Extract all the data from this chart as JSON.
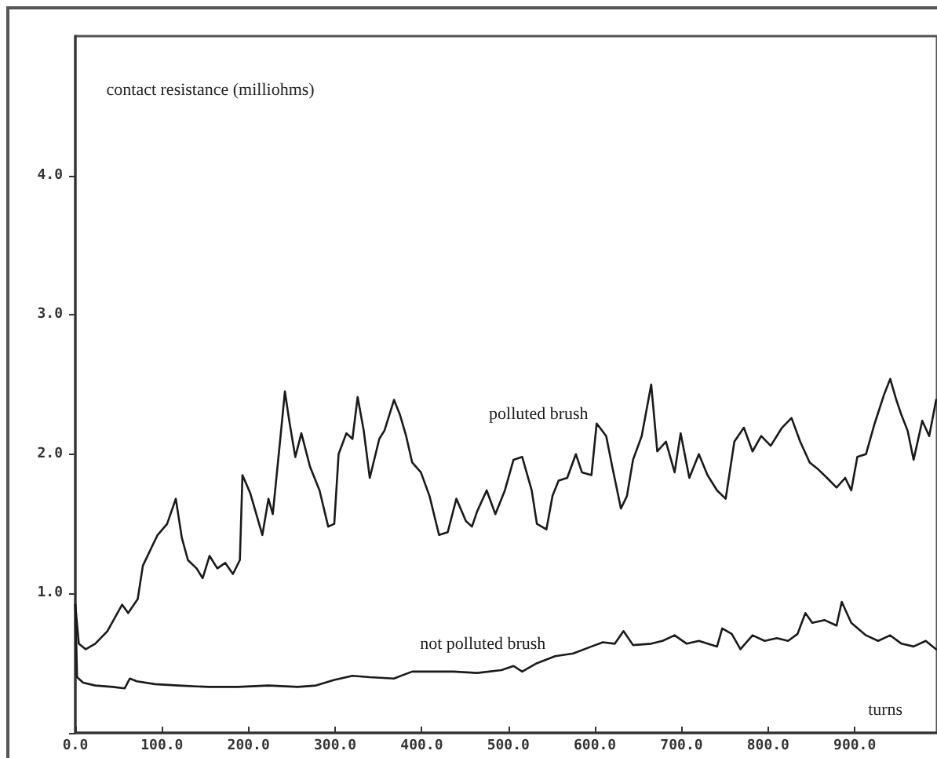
{
  "chart_data": {
    "type": "line",
    "xlabel": "turns",
    "ylabel": "contact resistance (milliohms)",
    "xlim": [
      0,
      995
    ],
    "ylim": [
      0,
      5
    ],
    "xticks": [
      {
        "value": 0,
        "label": "0.0"
      },
      {
        "value": 100,
        "label": "100.0"
      },
      {
        "value": 200,
        "label": "200.0"
      },
      {
        "value": 300,
        "label": "300.0"
      },
      {
        "value": 400,
        "label": "400.0"
      },
      {
        "value": 500,
        "label": "500.0"
      },
      {
        "value": 600,
        "label": "600.0"
      },
      {
        "value": 700,
        "label": "700.0"
      },
      {
        "value": 800,
        "label": "800.0"
      },
      {
        "value": 900,
        "label": "900.0"
      }
    ],
    "yticks": [
      {
        "value": 0,
        "label": null
      },
      {
        "value": 1,
        "label": "1.0"
      },
      {
        "value": 2,
        "label": "2.0"
      },
      {
        "value": 3,
        "label": "3.0"
      },
      {
        "value": 4,
        "label": "4.0"
      }
    ],
    "grid": false,
    "legend": false,
    "marker": "none",
    "line_style": "solid",
    "series": [
      {
        "name": "polluted brush",
        "color": "#1a1a1a",
        "x": [
          0,
          4,
          12,
          23,
          37,
          54,
          61,
          72,
          78,
          88,
          95,
          106,
          116,
          123,
          130,
          140,
          147,
          155,
          164,
          173,
          182,
          190,
          193,
          202,
          216,
          223,
          228,
          237,
          242,
          247,
          254,
          261,
          271,
          282,
          292,
          299,
          304,
          313,
          320,
          326,
          333,
          340,
          351,
          357,
          368,
          375,
          382,
          389,
          399,
          409,
          420,
          430,
          440,
          451,
          458,
          464,
          475,
          485,
          496,
          506,
          516,
          527,
          533,
          544,
          551,
          558,
          568,
          578,
          585,
          596,
          602,
          613,
          620,
          630,
          637,
          644,
          654,
          665,
          672,
          682,
          692,
          699,
          709,
          720,
          730,
          741,
          751,
          761,
          772,
          782,
          792,
          803,
          816,
          827,
          837,
          848,
          858,
          868,
          879,
          889,
          896,
          903,
          913,
          923,
          934,
          941,
          948,
          954,
          961,
          968,
          978,
          986,
          994
        ],
        "values": [
          0.92,
          0.64,
          0.6,
          0.64,
          0.73,
          0.92,
          0.86,
          0.96,
          1.2,
          1.33,
          1.42,
          1.5,
          1.68,
          1.4,
          1.24,
          1.18,
          1.11,
          1.27,
          1.18,
          1.22,
          1.14,
          1.24,
          1.85,
          1.72,
          1.42,
          1.68,
          1.57,
          2.13,
          2.45,
          2.24,
          1.98,
          2.15,
          1.91,
          1.74,
          1.48,
          1.5,
          2.0,
          2.15,
          2.11,
          2.41,
          2.17,
          1.83,
          2.11,
          2.17,
          2.39,
          2.28,
          2.13,
          1.94,
          1.87,
          1.7,
          1.42,
          1.44,
          1.68,
          1.52,
          1.48,
          1.59,
          1.74,
          1.57,
          1.74,
          1.96,
          1.98,
          1.74,
          1.5,
          1.46,
          1.7,
          1.81,
          1.83,
          2.0,
          1.87,
          1.85,
          2.22,
          2.13,
          1.91,
          1.61,
          1.7,
          1.96,
          2.13,
          2.5,
          2.02,
          2.09,
          1.87,
          2.15,
          1.83,
          2.0,
          1.85,
          1.74,
          1.68,
          2.09,
          2.19,
          2.02,
          2.13,
          2.06,
          2.19,
          2.26,
          2.09,
          1.94,
          1.89,
          1.83,
          1.76,
          1.83,
          1.74,
          1.98,
          2.0,
          2.22,
          2.43,
          2.54,
          2.39,
          2.28,
          2.17,
          1.96,
          2.24,
          2.13,
          2.39
        ]
      },
      {
        "name": "not polluted brush",
        "color": "#1a1a1a",
        "x": [
          0,
          2,
          9,
          23,
          43,
          57,
          63,
          71,
          92,
          119,
          154,
          188,
          223,
          257,
          278,
          299,
          320,
          340,
          368,
          389,
          409,
          437,
          464,
          492,
          506,
          516,
          533,
          554,
          575,
          596,
          609,
          623,
          633,
          644,
          665,
          678,
          692,
          706,
          720,
          741,
          747,
          758,
          768,
          782,
          796,
          810,
          823,
          834,
          843,
          851,
          865,
          879,
          885,
          896,
          913,
          927,
          941,
          954,
          968,
          982,
          994
        ],
        "values": [
          0.92,
          0.4,
          0.36,
          0.34,
          0.33,
          0.32,
          0.39,
          0.37,
          0.35,
          0.34,
          0.33,
          0.33,
          0.34,
          0.33,
          0.34,
          0.38,
          0.41,
          0.4,
          0.39,
          0.44,
          0.44,
          0.44,
          0.43,
          0.45,
          0.48,
          0.44,
          0.5,
          0.55,
          0.57,
          0.62,
          0.65,
          0.64,
          0.73,
          0.63,
          0.64,
          0.66,
          0.7,
          0.64,
          0.66,
          0.62,
          0.75,
          0.71,
          0.6,
          0.7,
          0.66,
          0.68,
          0.66,
          0.71,
          0.86,
          0.79,
          0.81,
          0.77,
          0.94,
          0.79,
          0.7,
          0.66,
          0.7,
          0.64,
          0.62,
          0.66,
          0.6
        ]
      }
    ]
  }
}
